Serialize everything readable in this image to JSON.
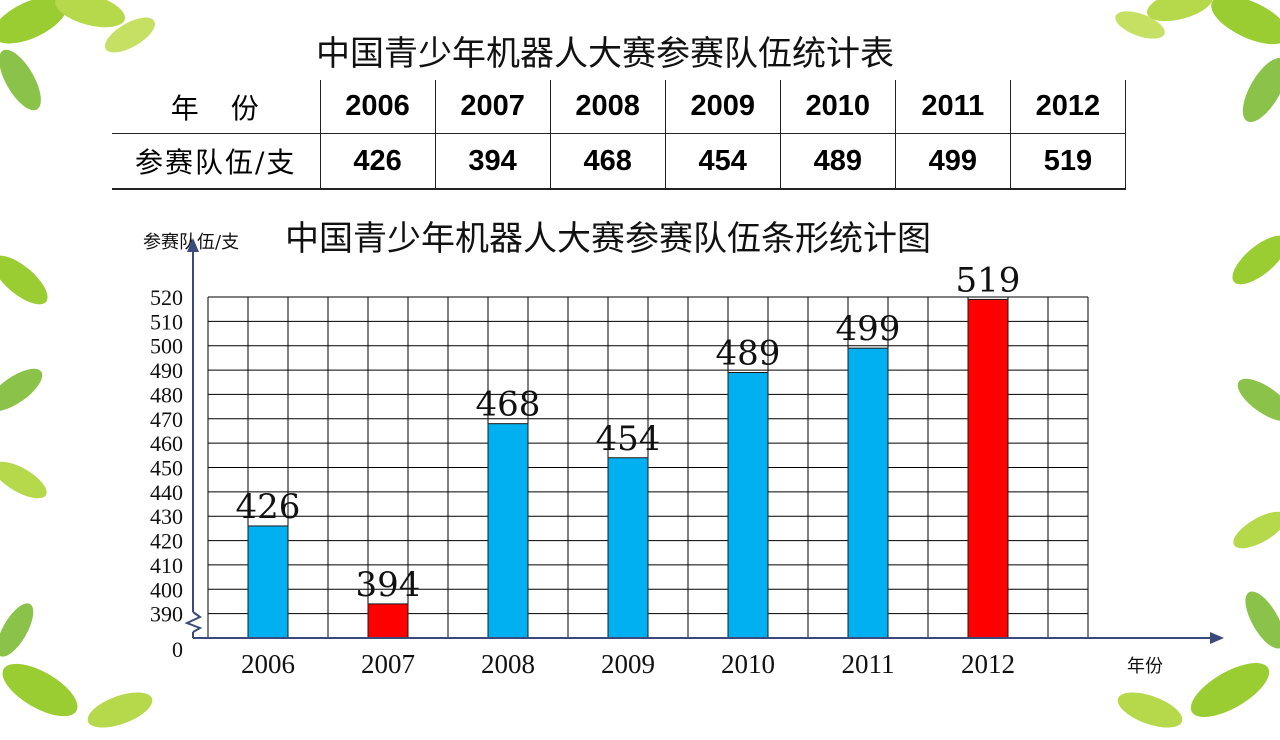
{
  "table": {
    "title": "中国青少年机器人大赛参赛队伍统计表",
    "row_headers": [
      "年　份",
      "参赛队伍/支"
    ],
    "years": [
      "2006",
      "2007",
      "2008",
      "2009",
      "2010",
      "2011",
      "2012"
    ],
    "counts": [
      "426",
      "394",
      "468",
      "454",
      "489",
      "499",
      "519"
    ]
  },
  "chart_data": {
    "type": "bar",
    "title": "中国青少年机器人大赛参赛队伍条形统计图",
    "ylabel": "参赛队伍/支",
    "xlabel": "年份",
    "categories": [
      "2006",
      "2007",
      "2008",
      "2009",
      "2010",
      "2011",
      "2012"
    ],
    "values": [
      426,
      394,
      468,
      454,
      489,
      499,
      519
    ],
    "ylim": [
      380,
      520
    ],
    "axis_break": true,
    "origin_label": "0",
    "y_tick_labels": [
      "390",
      "400",
      "410",
      "420",
      "430",
      "440",
      "450",
      "460",
      "470",
      "480",
      "490",
      "500",
      "510",
      "520"
    ],
    "grid": true,
    "colors": {
      "default": "#00b0f0",
      "highlight": "#ff0000"
    },
    "highlight_categories": [
      "2007",
      "2012"
    ]
  }
}
